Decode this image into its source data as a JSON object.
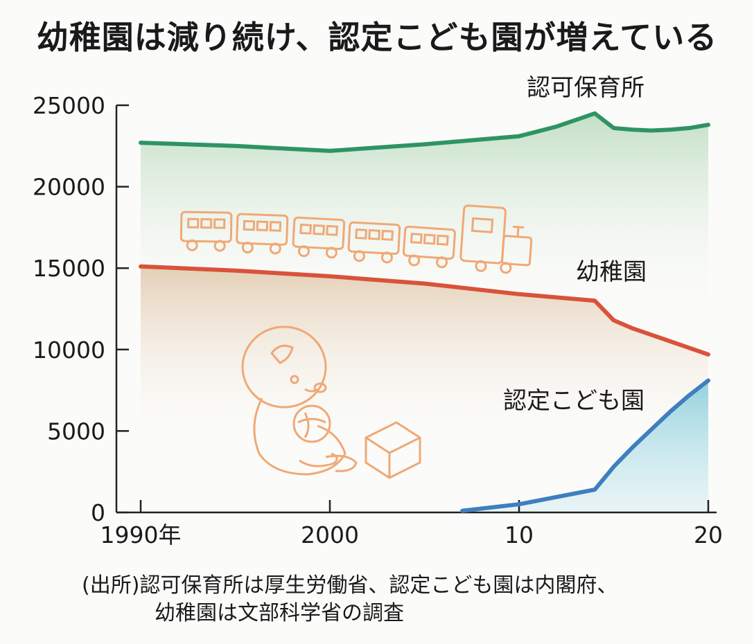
{
  "title": "幼稚園は減り続け、認定こども園が増えている",
  "source_line1": "(出所)認可保育所は厚生労働省、認定こども園は内閣府、",
  "source_line2": "幼稚園は文部科学省の調査",
  "chart_data": {
    "type": "line",
    "y_ticks": [
      0,
      5000,
      10000,
      15000,
      20000,
      25000
    ],
    "y_tick_labels": [
      "0",
      "5000",
      "10000",
      "15000",
      "20000",
      "25000"
    ],
    "x_ticks": [
      1990,
      2000,
      2010,
      2020
    ],
    "x_tick_labels": [
      "1990年",
      "2000",
      "10",
      "20"
    ],
    "ylim": [
      0,
      25000
    ],
    "xlim": [
      1990,
      2020
    ],
    "grid": false,
    "series": [
      {
        "name": "認可保育所",
        "color": "#2e9463",
        "fill": "#cfe6cf",
        "x": [
          1990,
          1995,
          2000,
          2005,
          2008,
          2010,
          2012,
          2014,
          2015,
          2016,
          2017,
          2018,
          2019,
          2020
        ],
        "values": [
          22700,
          22500,
          22200,
          22600,
          22900,
          23100,
          23700,
          24500,
          23600,
          23500,
          23450,
          23500,
          23600,
          23800
        ]
      },
      {
        "name": "幼稚園",
        "color": "#d9523a",
        "fill": "#e8d9c4",
        "x": [
          1990,
          1995,
          2000,
          2005,
          2010,
          2014,
          2015,
          2016,
          2017,
          2018,
          2019,
          2020
        ],
        "values": [
          15100,
          14850,
          14500,
          14050,
          13400,
          13000,
          11800,
          11300,
          10900,
          10500,
          10100,
          9700
        ]
      },
      {
        "name": "認定こども園",
        "color": "#3e7fbf",
        "fill": "#b7dfe6",
        "x": [
          2007,
          2010,
          2014,
          2015,
          2016,
          2017,
          2018,
          2019,
          2020
        ],
        "values": [
          100,
          500,
          1400,
          2800,
          4000,
          5100,
          6200,
          7200,
          8100
        ]
      }
    ]
  },
  "illustrations": [
    "train-illustration",
    "baby-with-ball-illustration",
    "toy-block-illustration"
  ]
}
